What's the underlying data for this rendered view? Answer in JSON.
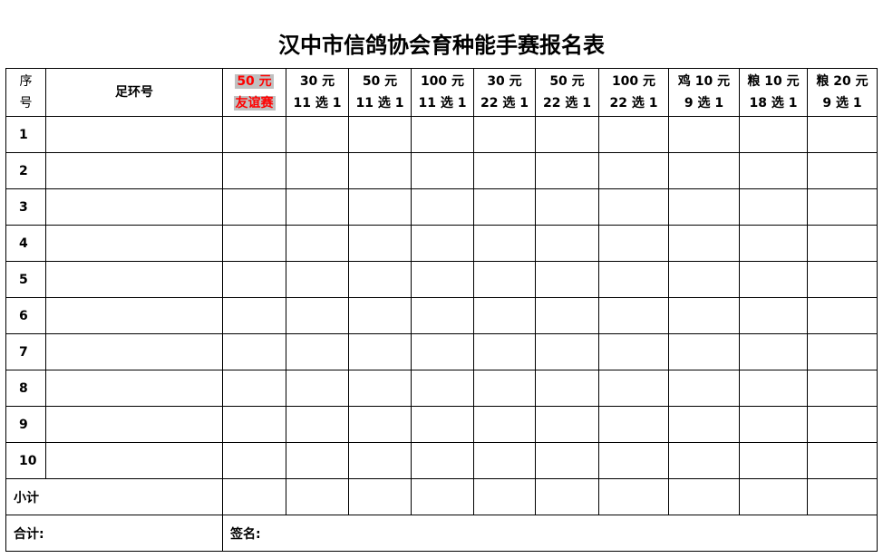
{
  "title": "汉中市信鸽协会育种能手赛报名表",
  "headers": {
    "seq_line1": "序",
    "seq_line2": "号",
    "ring": "足环号",
    "columns": [
      {
        "line1": "50 元",
        "line2": "友谊赛",
        "highlight": true
      },
      {
        "line1": "30 元",
        "line2": "11 选 1"
      },
      {
        "line1": "50 元",
        "line2": "11 选 1"
      },
      {
        "line1": "100 元",
        "line2": "11 选 1"
      },
      {
        "line1": "30 元",
        "line2": "22 选 1"
      },
      {
        "line1": "50 元",
        "line2": "22 选 1"
      },
      {
        "line1": "100 元",
        "line2": "22 选 1"
      },
      {
        "line1": "鸡 10 元",
        "line2": "9 选 1"
      },
      {
        "line1": "粮 10 元",
        "line2": "18 选 1"
      },
      {
        "line1": "粮 20 元",
        "line2": "9 选 1"
      }
    ]
  },
  "rows": [
    "1",
    "2",
    "3",
    "4",
    "5",
    "6",
    "7",
    "8",
    "9",
    "10"
  ],
  "subtotal_label": "小计",
  "total_label": "合计:",
  "signature_label": "签名:",
  "colors": {
    "highlight_bg": "#c0c0c0",
    "highlight_text": "#ff0000"
  }
}
